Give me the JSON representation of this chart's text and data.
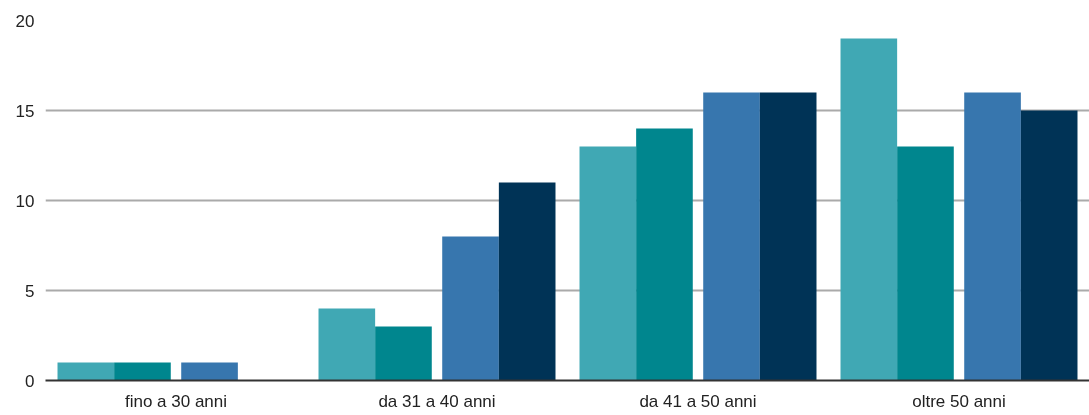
{
  "chart_data": {
    "type": "bar",
    "categories": [
      "fino a 30 anni",
      "da 31 a 40 anni",
      "da 41 a 50 anni",
      "oltre 50 anni"
    ],
    "series": [
      {
        "color": "#40a8b4",
        "values": [
          1,
          4,
          13,
          19
        ]
      },
      {
        "color": "#00868e",
        "values": [
          1,
          3,
          14,
          13
        ]
      },
      {
        "color": "#3776ae",
        "values": [
          1,
          8,
          16,
          16
        ]
      },
      {
        "color": "#003356",
        "values": [
          0,
          11,
          16,
          15
        ]
      }
    ],
    "ylim": [
      0,
      20
    ],
    "yticks": [
      0,
      5,
      10,
      15,
      20
    ],
    "grid": "y"
  }
}
